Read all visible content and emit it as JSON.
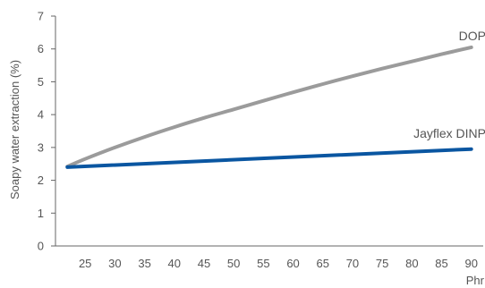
{
  "chart_data": {
    "type": "line",
    "title": "",
    "xlabel": "Phr",
    "ylabel": "Soapy water extraction (%)",
    "xlim": [
      20,
      92
    ],
    "ylim": [
      0,
      7
    ],
    "xticks": [
      25,
      30,
      35,
      40,
      45,
      50,
      55,
      60,
      65,
      70,
      75,
      80,
      85,
      90
    ],
    "yticks": [
      0,
      1,
      2,
      3,
      4,
      5,
      6,
      7
    ],
    "grid": false,
    "series": [
      {
        "name": "DOP",
        "color": "#9b9b9b",
        "x": [
          22,
          25,
          30,
          35,
          40,
          45,
          50,
          55,
          60,
          65,
          70,
          75,
          80,
          85,
          90
        ],
        "y": [
          2.42,
          2.65,
          3.0,
          3.32,
          3.62,
          3.9,
          4.16,
          4.42,
          4.68,
          4.93,
          5.17,
          5.4,
          5.62,
          5.84,
          6.05
        ]
      },
      {
        "name": "Jayflex DINP",
        "color": "#0a56a1",
        "x": [
          22,
          90
        ],
        "y": [
          2.4,
          2.95
        ]
      }
    ]
  }
}
